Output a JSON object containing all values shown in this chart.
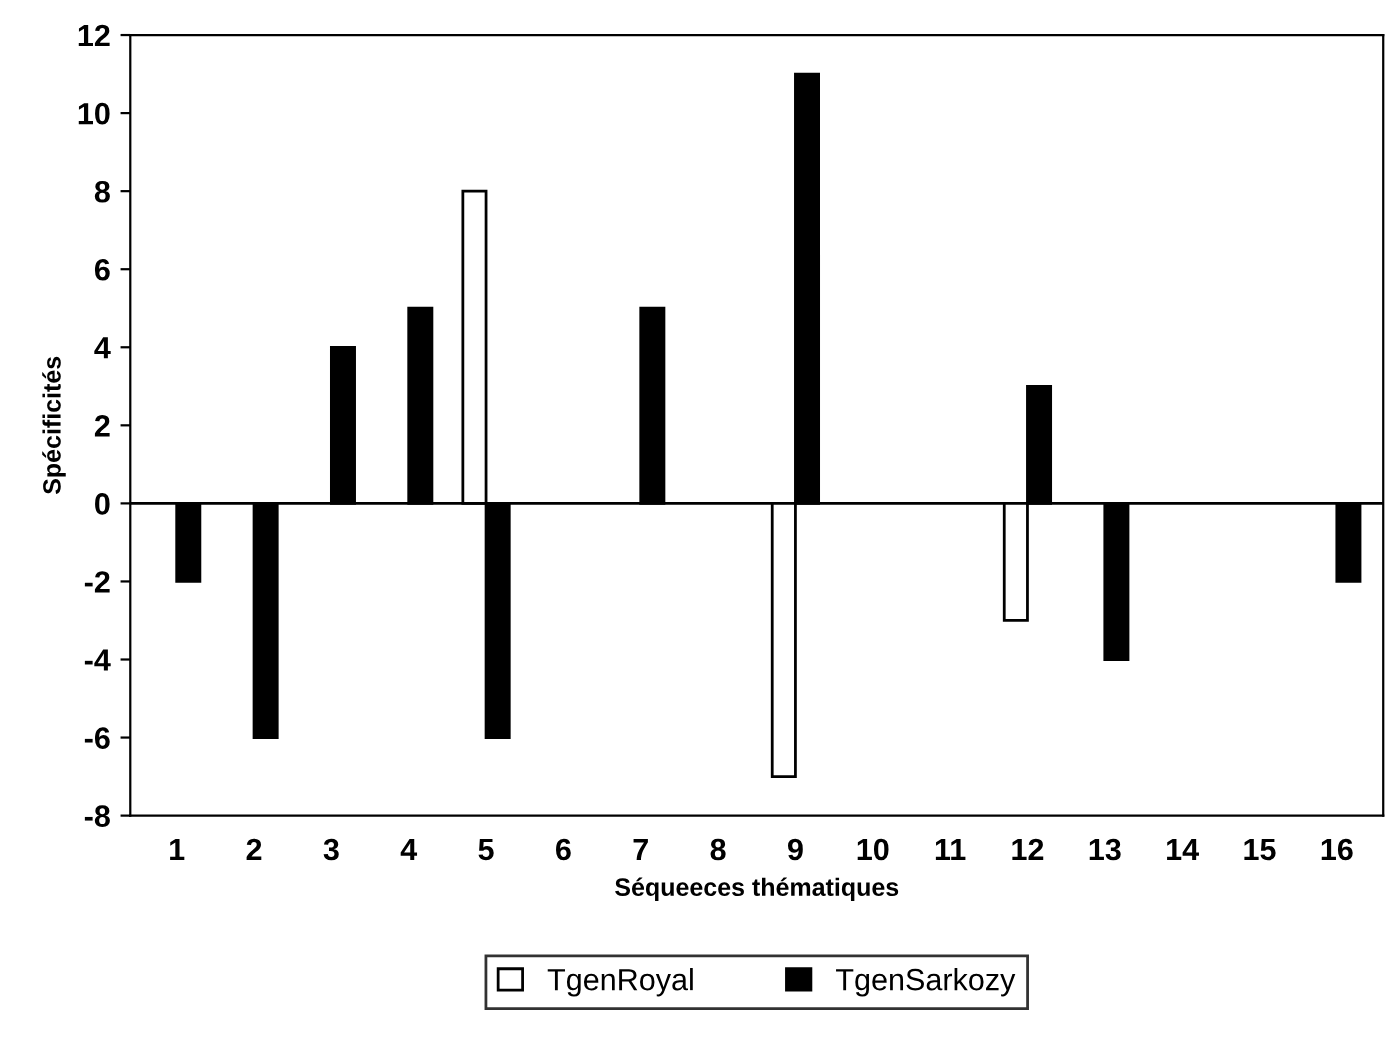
{
  "chart_data": {
    "type": "bar",
    "xlabel": "Séqueeces thématiques",
    "ylabel": "Spécificités",
    "categories": [
      "1",
      "2",
      "3",
      "4",
      "5",
      "6",
      "7",
      "8",
      "9",
      "10",
      "11",
      "12",
      "13",
      "14",
      "15",
      "16"
    ],
    "series": [
      {
        "name": "TgenRoyal",
        "color": "#ffffff",
        "values": [
          null,
          null,
          null,
          null,
          8,
          null,
          null,
          null,
          -7,
          null,
          null,
          -3,
          null,
          null,
          null,
          null
        ]
      },
      {
        "name": "TgenSarkozy",
        "color": "#000000",
        "values": [
          -2,
          -6,
          4,
          5,
          -6,
          null,
          5,
          null,
          11,
          null,
          null,
          3,
          -4,
          null,
          null,
          -2
        ]
      }
    ],
    "ylim": [
      -8,
      12
    ],
    "yticks": [
      -8,
      -6,
      -4,
      -2,
      0,
      2,
      4,
      6,
      8,
      10,
      12
    ],
    "ref_lines": [
      {
        "axis": "y",
        "value": 0,
        "color": "#000000"
      }
    ],
    "grid": false,
    "legend": "bottom"
  }
}
